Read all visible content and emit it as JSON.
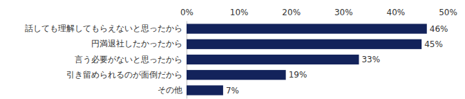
{
  "chart_data": {
    "type": "bar",
    "orientation": "horizontal",
    "categories": [
      "話しても理解してもらえないと思ったから",
      "円満退社したかったから",
      "言う必要がないと思ったから",
      "引き留められるのが面倒だから",
      "その他"
    ],
    "values": [
      46,
      45,
      33,
      19,
      7
    ],
    "value_labels": [
      "46%",
      "45%",
      "33%",
      "19%",
      "7%"
    ],
    "data_labels": true,
    "color": "#13235b",
    "xlim": [
      0,
      50
    ],
    "xticks": [
      {
        "value": 0,
        "label": "0%"
      },
      {
        "value": 10,
        "label": "10%"
      },
      {
        "value": 20,
        "label": "20%"
      },
      {
        "value": 30,
        "label": "30%"
      },
      {
        "value": 40,
        "label": "40%"
      },
      {
        "value": 50,
        "label": "50%"
      }
    ],
    "grid": false
  }
}
